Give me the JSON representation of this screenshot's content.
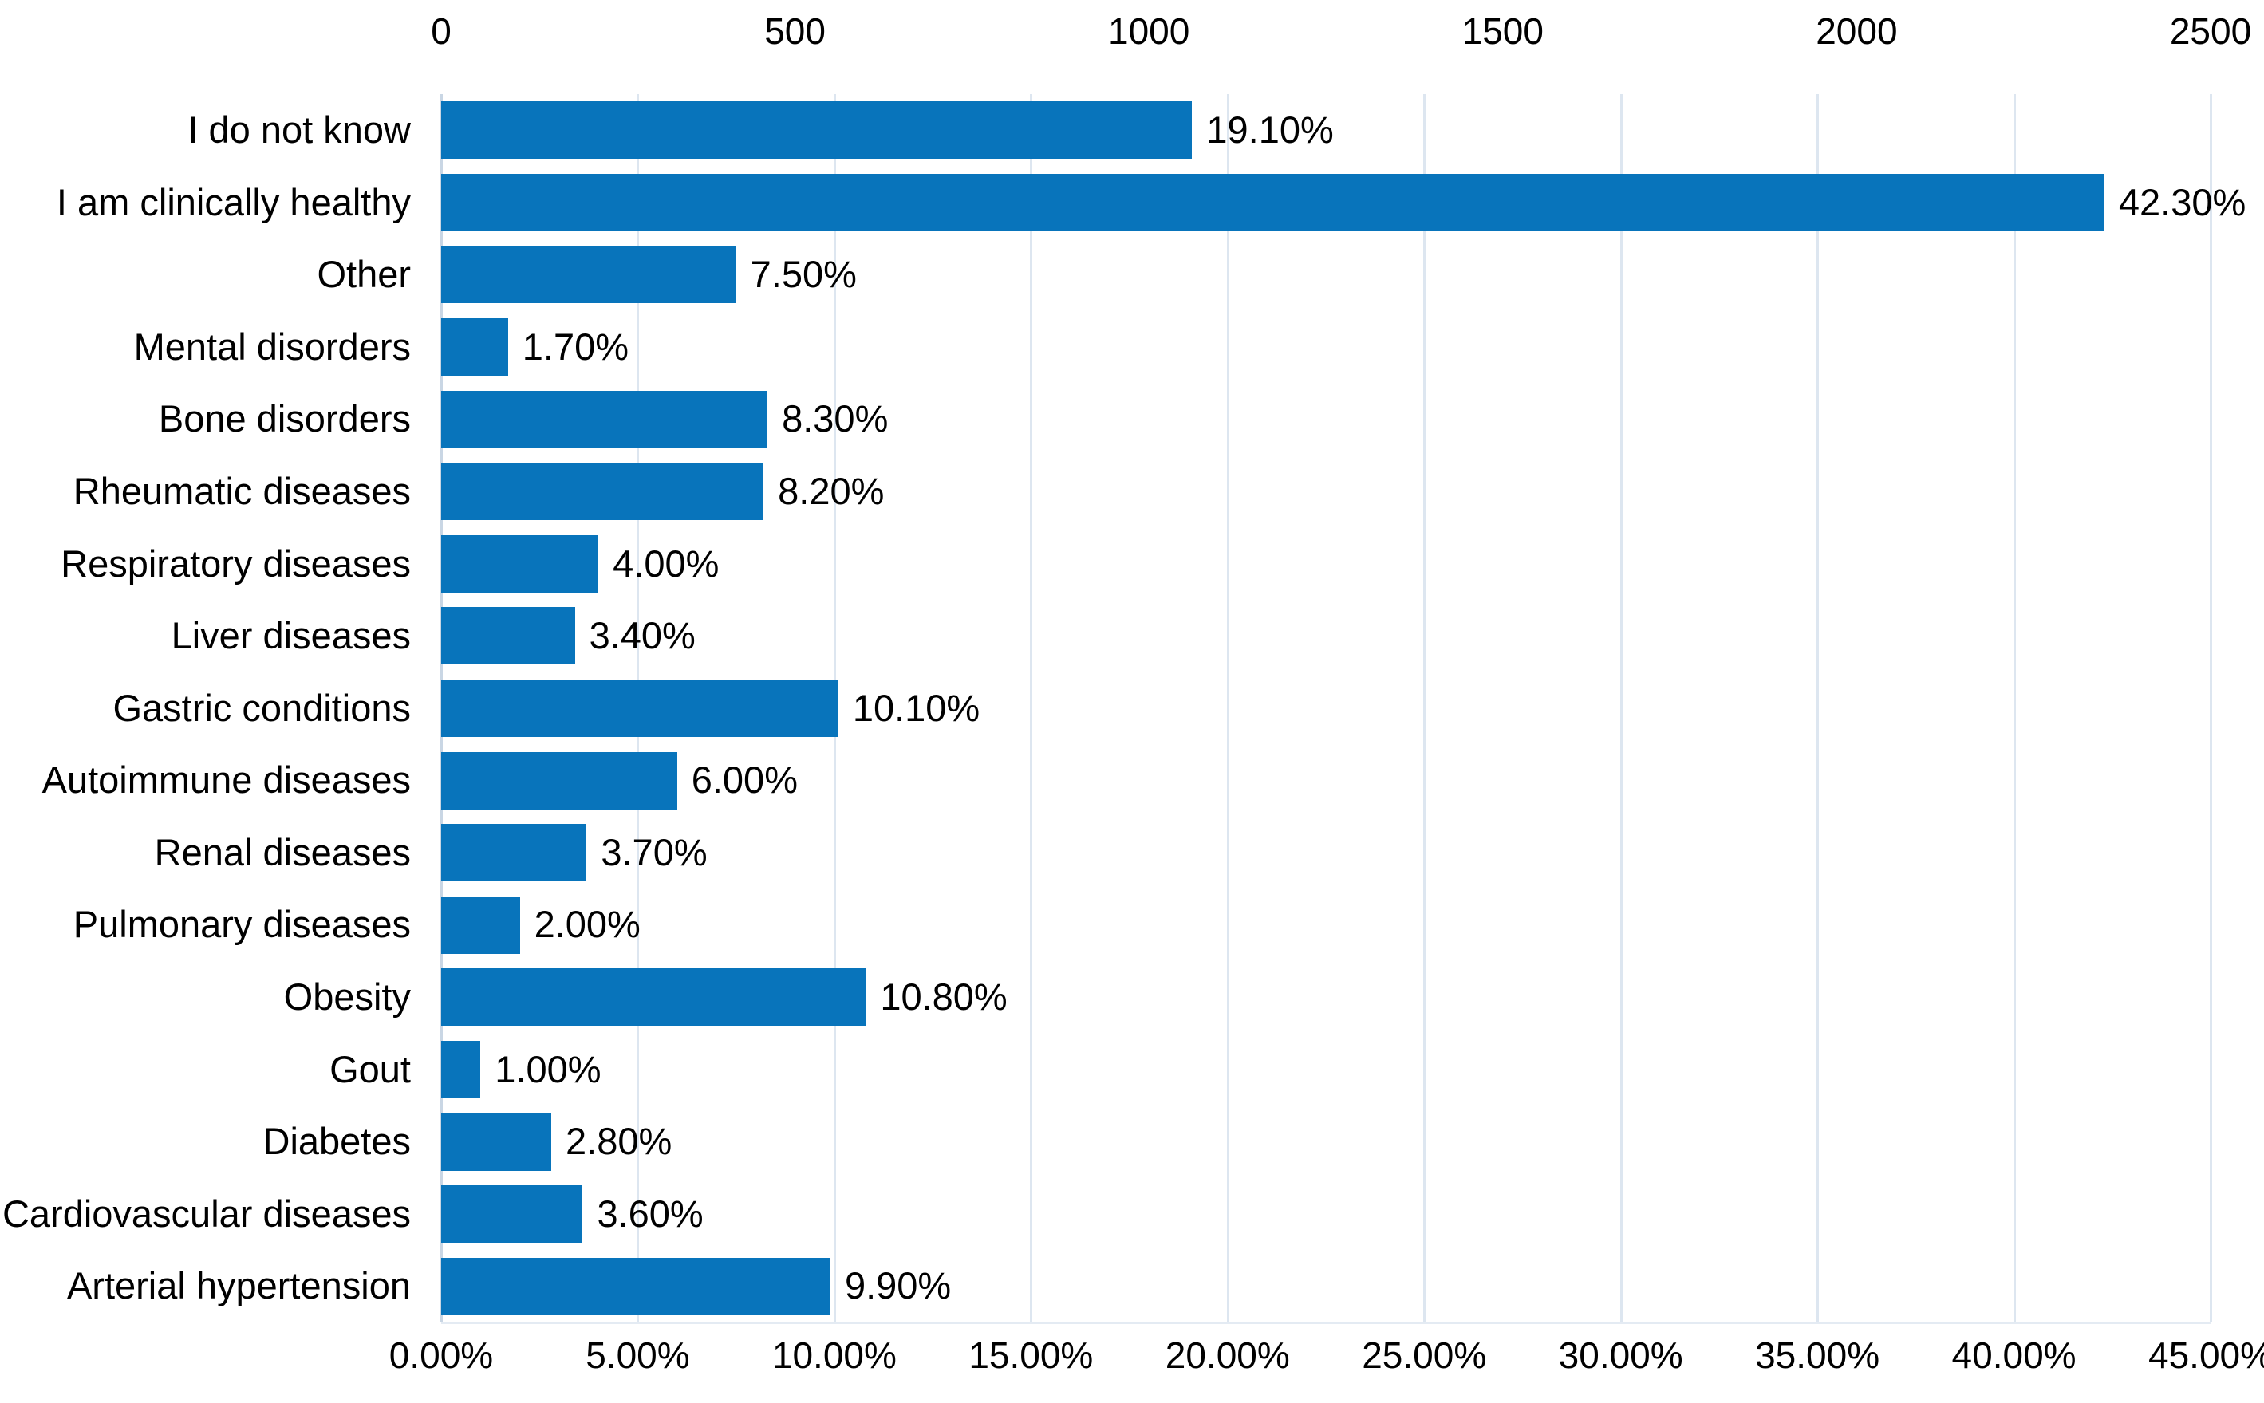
{
  "chart_data": {
    "type": "bar",
    "orientation": "horizontal",
    "title": "",
    "categories": [
      "I do not know",
      "I am clinically healthy",
      "Other",
      "Mental disorders",
      "Bone disorders",
      "Rheumatic diseases",
      "Respiratory diseases",
      "Liver diseases",
      "Gastric conditions",
      "Autoimmune diseases",
      "Renal diseases",
      "Pulmonary diseases",
      "Obesity",
      "Gout",
      "Diabetes",
      "Cardiovascular diseases",
      "Arterial hypertension"
    ],
    "values": [
      19.1,
      42.3,
      7.5,
      1.7,
      8.3,
      8.2,
      4.0,
      3.4,
      10.1,
      6.0,
      3.7,
      2.0,
      10.8,
      1.0,
      2.8,
      3.6,
      9.9
    ],
    "data_labels": [
      "19.10%",
      "42.30%",
      "7.50%",
      "1.70%",
      "8.30%",
      "8.20%",
      "4.00%",
      "3.40%",
      "10.10%",
      "6.00%",
      "3.70%",
      "2.00%",
      "10.80%",
      "1.00%",
      "2.80%",
      "3.60%",
      "9.90%"
    ],
    "bottom_axis": {
      "unit": "percent",
      "min": 0,
      "max": 45,
      "tick_step": 5,
      "ticks": [
        "0.00%",
        "5.00%",
        "10.00%",
        "15.00%",
        "20.00%",
        "25.00%",
        "30.00%",
        "35.00%",
        "40.00%",
        "45.00%"
      ]
    },
    "top_axis": {
      "unit": "count",
      "min": 0,
      "max": 2500,
      "tick_step": 500,
      "ticks": [
        "0",
        "500",
        "1000",
        "1500",
        "2000",
        "2500"
      ]
    },
    "legend_position": "none",
    "grid": "vertical",
    "colors": {
      "bar": "#0874bb",
      "gridline": "#dde6f0",
      "axis_line": "#c9d6e4",
      "text": "#000000",
      "background": "#ffffff"
    }
  }
}
